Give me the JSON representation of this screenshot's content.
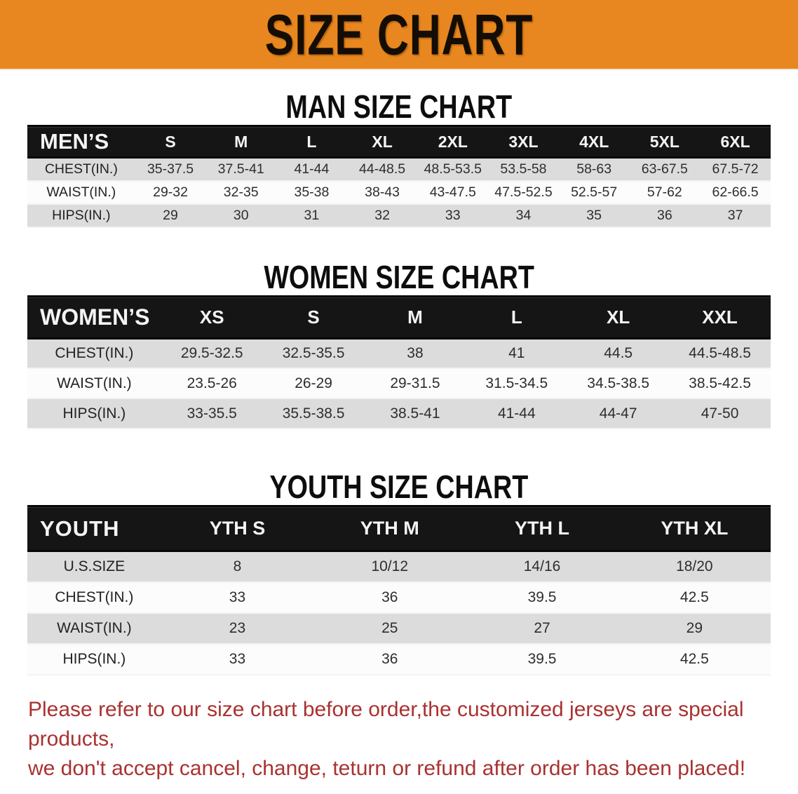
{
  "banner": {
    "title": "SIZE CHART",
    "bg_color": "#E8871F"
  },
  "colors": {
    "banner_orange": "#E8871F",
    "table_header_black": "#151515",
    "stripe_gray": "#DCDCDC",
    "stripe_white": "#FCFCFC",
    "footer_red": "#A93230"
  },
  "sections": {
    "men": {
      "title": "MAN SIZE CHART",
      "table": {
        "header_label": "MEN’S",
        "columns": [
          "S",
          "M",
          "L",
          "XL",
          "2XL",
          "3XL",
          "4XL",
          "5XL",
          "6XL"
        ],
        "rows": [
          {
            "label": "CHEST(IN.)",
            "values": [
              "35-37.5",
              "37.5-41",
              "41-44",
              "44-48.5",
              "48.5-53.5",
              "53.5-58",
              "58-63",
              "63-67.5",
              "67.5-72"
            ]
          },
          {
            "label": "WAIST(IN.)",
            "values": [
              "29-32",
              "32-35",
              "35-38",
              "38-43",
              "43-47.5",
              "47.5-52.5",
              "52.5-57",
              "57-62",
              "62-66.5"
            ]
          },
          {
            "label": "HIPS(IN.)",
            "values": [
              "29",
              "30",
              "31",
              "32",
              "33",
              "34",
              "35",
              "36",
              "37"
            ]
          }
        ]
      }
    },
    "women": {
      "title": "WOMEN SIZE CHART",
      "table": {
        "header_label": "WOMEN’S",
        "columns": [
          "XS",
          "S",
          "M",
          "L",
          "XL",
          "XXL"
        ],
        "rows": [
          {
            "label": "CHEST(IN.)",
            "values": [
              "29.5-32.5",
              "32.5-35.5",
              "38",
              "41",
              "44.5",
              "44.5-48.5"
            ]
          },
          {
            "label": "WAIST(IN.)",
            "values": [
              "23.5-26",
              "26-29",
              "29-31.5",
              "31.5-34.5",
              "34.5-38.5",
              "38.5-42.5"
            ]
          },
          {
            "label": "HIPS(IN.)",
            "values": [
              "33-35.5",
              "35.5-38.5",
              "38.5-41",
              "41-44",
              "44-47",
              "47-50"
            ]
          }
        ]
      }
    },
    "youth": {
      "title": "YOUTH SIZE CHART",
      "table": {
        "header_label": "YOUTH",
        "columns": [
          "YTH S",
          "YTH M",
          "YTH L",
          "YTH XL"
        ],
        "rows": [
          {
            "label": "U.S.SIZE",
            "values": [
              "8",
              "10/12",
              "14/16",
              "18/20"
            ]
          },
          {
            "label": "CHEST(IN.)",
            "values": [
              "33",
              "36",
              "39.5",
              "42.5"
            ]
          },
          {
            "label": "WAIST(IN.)",
            "values": [
              "23",
              "25",
              "27",
              "29"
            ]
          },
          {
            "label": "HIPS(IN.)",
            "values": [
              "33",
              "36",
              "39.5",
              "42.5"
            ]
          }
        ]
      }
    }
  },
  "footer": {
    "line1": "Please refer to our size chart before order,the customized jerseys are special products,",
    "line2": "we don't accept cancel, change, teturn or refund after order has been placed!"
  }
}
